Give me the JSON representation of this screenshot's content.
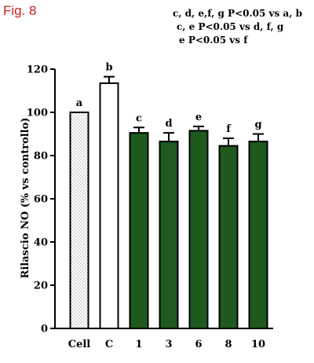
{
  "figure_label": "Fig. 8",
  "notes": [
    "c, d, e,f, g P<0.05 vs a, b",
    "c, e P<0.05 vs d, f, g",
    "e P<0.05 vs f"
  ],
  "colors": {
    "treated_bar": "#1e5a1e",
    "control_bar": "#ffffff",
    "cell_bar_pattern": "#b0b0b0",
    "figure_label": "#c8201f"
  },
  "chart_data": {
    "type": "bar",
    "ylabel": "Rilascio NO (% vs controllo)",
    "xlabel": "",
    "ylim": [
      0,
      120
    ],
    "yticks": [
      0,
      20,
      40,
      60,
      80,
      100,
      120
    ],
    "categories": [
      "Cell",
      "C",
      "1",
      "3",
      "6",
      "8",
      "10"
    ],
    "values": [
      100,
      113.5,
      90.5,
      86.5,
      91.5,
      84.5,
      86.5
    ],
    "errors": [
      0,
      3,
      2.5,
      4,
      2,
      3.5,
      3.5
    ],
    "significance_letters": [
      "a",
      "b",
      "c",
      "d",
      "e",
      "f",
      "g"
    ],
    "fills": [
      "dotted",
      "white",
      "green",
      "green",
      "green",
      "green",
      "green"
    ],
    "grid": false,
    "legend": "none"
  }
}
